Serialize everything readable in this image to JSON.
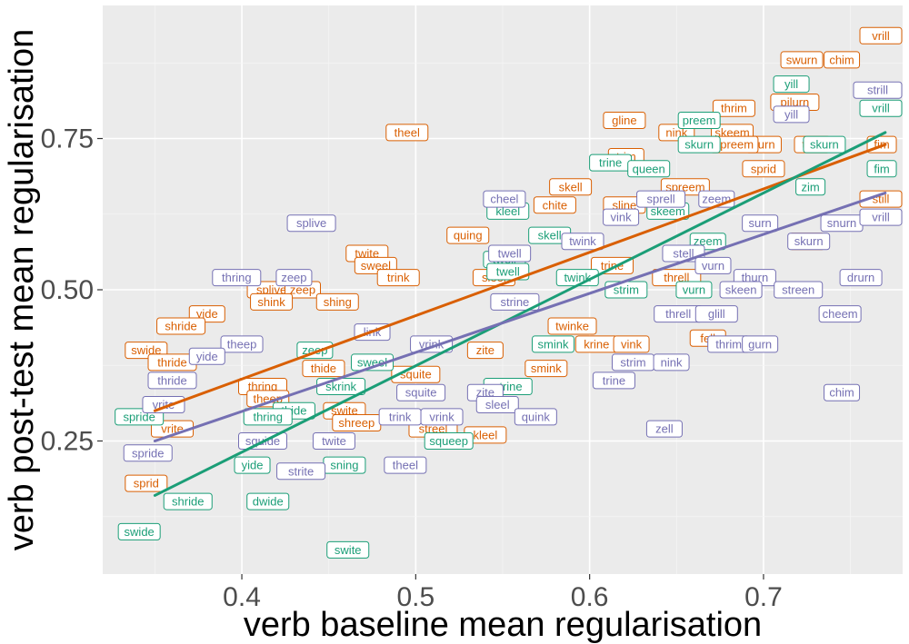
{
  "colors": {
    "panel": "#ebebeb",
    "grid_major": "#ffffff",
    "grid_minor": "#f5f5f5",
    "orange": "#d95f02",
    "green": "#1b9e77",
    "purple": "#7570b3",
    "tick_text": "#4d4d4d"
  },
  "chart_data": {
    "type": "scatter",
    "title": "",
    "xlabel": "verb baseline mean regularisation",
    "ylabel": "verb post-test mean regularisation",
    "xlim": [
      0.32,
      0.78
    ],
    "ylim": [
      0.03,
      0.97
    ],
    "x_ticks": [
      0.4,
      0.5,
      0.6,
      0.7
    ],
    "x_tick_labels": [
      "0.4",
      "0.5",
      "0.6",
      "0.7"
    ],
    "y_ticks": [
      0.25,
      0.5,
      0.75
    ],
    "y_tick_labels": [
      "0.25",
      "0.50",
      "0.75"
    ],
    "grid": true,
    "legend": "none",
    "trend_lines": [
      {
        "color": "orange",
        "x": [
          0.35,
          0.77
        ],
        "y": [
          0.3,
          0.74
        ]
      },
      {
        "color": "green",
        "x": [
          0.35,
          0.77
        ],
        "y": [
          0.16,
          0.76
        ]
      },
      {
        "color": "purple",
        "x": [
          0.35,
          0.77
        ],
        "y": [
          0.25,
          0.66
        ]
      }
    ],
    "series": [
      {
        "color": "orange",
        "points": [
          {
            "label": "vrill",
            "x": 0.768,
            "y": 0.92
          },
          {
            "label": "swurn",
            "x": 0.722,
            "y": 0.88
          },
          {
            "label": "chim",
            "x": 0.745,
            "y": 0.88
          },
          {
            "label": "pilurn",
            "x": 0.718,
            "y": 0.81
          },
          {
            "label": "thrim",
            "x": 0.683,
            "y": 0.8
          },
          {
            "label": "theel",
            "x": 0.495,
            "y": 0.76
          },
          {
            "label": "gline",
            "x": 0.62,
            "y": 0.78
          },
          {
            "label": "nink",
            "x": 0.65,
            "y": 0.76
          },
          {
            "label": "skeem",
            "x": 0.682,
            "y": 0.76
          },
          {
            "label": "surn",
            "x": 0.7,
            "y": 0.74
          },
          {
            "label": "spreem",
            "x": 0.683,
            "y": 0.74
          },
          {
            "label": "turn",
            "x": 0.728,
            "y": 0.74
          },
          {
            "label": "fim",
            "x": 0.768,
            "y": 0.74
          },
          {
            "label": "trim",
            "x": 0.621,
            "y": 0.72
          },
          {
            "label": "sprid",
            "x": 0.7,
            "y": 0.7
          },
          {
            "label": "skell",
            "x": 0.589,
            "y": 0.67
          },
          {
            "label": "spreem",
            "x": 0.655,
            "y": 0.67
          },
          {
            "label": "chite",
            "x": 0.58,
            "y": 0.64
          },
          {
            "label": "sline",
            "x": 0.62,
            "y": 0.64
          },
          {
            "label": "still",
            "x": 0.768,
            "y": 0.65
          },
          {
            "label": "quing",
            "x": 0.53,
            "y": 0.59
          },
          {
            "label": "yill",
            "x": 0.725,
            "y": 0.58
          },
          {
            "label": "twite",
            "x": 0.472,
            "y": 0.56
          },
          {
            "label": "sweel",
            "x": 0.477,
            "y": 0.54
          },
          {
            "label": "trine",
            "x": 0.613,
            "y": 0.54
          },
          {
            "label": "sleel",
            "x": 0.545,
            "y": 0.52
          },
          {
            "label": "splive",
            "x": 0.417,
            "y": 0.5
          },
          {
            "label": "zeep",
            "x": 0.435,
            "y": 0.5
          },
          {
            "label": "trink",
            "x": 0.49,
            "y": 0.52
          },
          {
            "label": "threll",
            "x": 0.65,
            "y": 0.52
          },
          {
            "label": "shink",
            "x": 0.417,
            "y": 0.48
          },
          {
            "label": "shing",
            "x": 0.455,
            "y": 0.48
          },
          {
            "label": "yide",
            "x": 0.38,
            "y": 0.46
          },
          {
            "label": "shride",
            "x": 0.365,
            "y": 0.44
          },
          {
            "label": "twinke",
            "x": 0.59,
            "y": 0.44
          },
          {
            "label": "fell",
            "x": 0.668,
            "y": 0.42
          },
          {
            "label": "swide",
            "x": 0.345,
            "y": 0.4
          },
          {
            "label": "zite",
            "x": 0.54,
            "y": 0.4
          },
          {
            "label": "krine",
            "x": 0.604,
            "y": 0.41
          },
          {
            "label": "vink",
            "x": 0.624,
            "y": 0.41
          },
          {
            "label": "thride",
            "x": 0.36,
            "y": 0.38
          },
          {
            "label": "smink",
            "x": 0.575,
            "y": 0.37
          },
          {
            "label": "thide",
            "x": 0.447,
            "y": 0.37
          },
          {
            "label": "squite",
            "x": 0.5,
            "y": 0.36
          },
          {
            "label": "thring",
            "x": 0.412,
            "y": 0.34
          },
          {
            "label": "theep",
            "x": 0.415,
            "y": 0.32
          },
          {
            "label": "swite",
            "x": 0.459,
            "y": 0.3
          },
          {
            "label": "shreep",
            "x": 0.466,
            "y": 0.28
          },
          {
            "label": "streel",
            "x": 0.51,
            "y": 0.27
          },
          {
            "label": "kleel",
            "x": 0.54,
            "y": 0.26
          },
          {
            "label": "vrite",
            "x": 0.36,
            "y": 0.27
          },
          {
            "label": "sprid",
            "x": 0.345,
            "y": 0.18
          }
        ]
      },
      {
        "color": "green",
        "points": [
          {
            "label": "yill",
            "x": 0.716,
            "y": 0.84
          },
          {
            "label": "vrill",
            "x": 0.768,
            "y": 0.8
          },
          {
            "label": "preem",
            "x": 0.663,
            "y": 0.78
          },
          {
            "label": "skurn",
            "x": 0.663,
            "y": 0.74
          },
          {
            "label": "skurn",
            "x": 0.735,
            "y": 0.74
          },
          {
            "label": "trine",
            "x": 0.612,
            "y": 0.71
          },
          {
            "label": "queen",
            "x": 0.634,
            "y": 0.7
          },
          {
            "label": "fim",
            "x": 0.768,
            "y": 0.7
          },
          {
            "label": "zim",
            "x": 0.727,
            "y": 0.67
          },
          {
            "label": "kleel",
            "x": 0.553,
            "y": 0.63
          },
          {
            "label": "skeem",
            "x": 0.645,
            "y": 0.63
          },
          {
            "label": "skell",
            "x": 0.577,
            "y": 0.59
          },
          {
            "label": "zeem",
            "x": 0.668,
            "y": 0.58
          },
          {
            "label": "twell",
            "x": 0.551,
            "y": 0.55
          },
          {
            "label": "twell",
            "x": 0.553,
            "y": 0.53
          },
          {
            "label": "twink",
            "x": 0.593,
            "y": 0.52
          },
          {
            "label": "strim",
            "x": 0.621,
            "y": 0.5
          },
          {
            "label": "vurn",
            "x": 0.66,
            "y": 0.5
          },
          {
            "label": "zeep",
            "x": 0.442,
            "y": 0.4
          },
          {
            "label": "smink",
            "x": 0.579,
            "y": 0.41
          },
          {
            "label": "sweel",
            "x": 0.475,
            "y": 0.38
          },
          {
            "label": "skrink",
            "x": 0.457,
            "y": 0.34
          },
          {
            "label": "strine",
            "x": 0.553,
            "y": 0.34
          },
          {
            "label": "thide",
            "x": 0.43,
            "y": 0.3
          },
          {
            "label": "thring",
            "x": 0.415,
            "y": 0.29
          },
          {
            "label": "squeep",
            "x": 0.519,
            "y": 0.25
          },
          {
            "label": "spride",
            "x": 0.341,
            "y": 0.29
          },
          {
            "label": "yide",
            "x": 0.406,
            "y": 0.21
          },
          {
            "label": "sning",
            "x": 0.459,
            "y": 0.21
          },
          {
            "label": "shride",
            "x": 0.369,
            "y": 0.15
          },
          {
            "label": "dwide",
            "x": 0.415,
            "y": 0.15
          },
          {
            "label": "swide",
            "x": 0.341,
            "y": 0.1
          },
          {
            "label": "swite",
            "x": 0.461,
            "y": 0.07
          }
        ]
      },
      {
        "color": "purple",
        "points": [
          {
            "label": "strill",
            "x": 0.768,
            "y": 0.83
          },
          {
            "label": "yill",
            "x": 0.716,
            "y": 0.79
          },
          {
            "label": "cheel",
            "x": 0.551,
            "y": 0.65
          },
          {
            "label": "sprell",
            "x": 0.641,
            "y": 0.65
          },
          {
            "label": "zeem",
            "x": 0.673,
            "y": 0.65
          },
          {
            "label": "vink",
            "x": 0.618,
            "y": 0.62
          },
          {
            "label": "surn",
            "x": 0.698,
            "y": 0.61
          },
          {
            "label": "snurn",
            "x": 0.745,
            "y": 0.61
          },
          {
            "label": "vrill",
            "x": 0.768,
            "y": 0.62
          },
          {
            "label": "splive",
            "x": 0.44,
            "y": 0.61
          },
          {
            "label": "skurn",
            "x": 0.726,
            "y": 0.58
          },
          {
            "label": "twell",
            "x": 0.554,
            "y": 0.56
          },
          {
            "label": "twink",
            "x": 0.596,
            "y": 0.58
          },
          {
            "label": "stell",
            "x": 0.654,
            "y": 0.56
          },
          {
            "label": "vurn",
            "x": 0.671,
            "y": 0.54
          },
          {
            "label": "thurn",
            "x": 0.695,
            "y": 0.52
          },
          {
            "label": "drurn",
            "x": 0.756,
            "y": 0.52
          },
          {
            "label": "thring",
            "x": 0.397,
            "y": 0.52
          },
          {
            "label": "zeep",
            "x": 0.43,
            "y": 0.52
          },
          {
            "label": "streen",
            "x": 0.72,
            "y": 0.5
          },
          {
            "label": "skeen",
            "x": 0.687,
            "y": 0.5
          },
          {
            "label": "strine",
            "x": 0.557,
            "y": 0.48
          },
          {
            "label": "cheem",
            "x": 0.744,
            "y": 0.46
          },
          {
            "label": "threll",
            "x": 0.651,
            "y": 0.46
          },
          {
            "label": "glill",
            "x": 0.673,
            "y": 0.46
          },
          {
            "label": "link",
            "x": 0.475,
            "y": 0.43
          },
          {
            "label": "theep",
            "x": 0.4,
            "y": 0.41
          },
          {
            "label": "vrink",
            "x": 0.509,
            "y": 0.41
          },
          {
            "label": "yide",
            "x": 0.38,
            "y": 0.39
          },
          {
            "label": "thride",
            "x": 0.36,
            "y": 0.35
          },
          {
            "label": "thrim",
            "x": 0.68,
            "y": 0.41
          },
          {
            "label": "gurn",
            "x": 0.698,
            "y": 0.41
          },
          {
            "label": "strim",
            "x": 0.625,
            "y": 0.38
          },
          {
            "label": "nink",
            "x": 0.647,
            "y": 0.38
          },
          {
            "label": "trine",
            "x": 0.614,
            "y": 0.35
          },
          {
            "label": "chim",
            "x": 0.745,
            "y": 0.33
          },
          {
            "label": "zite",
            "x": 0.54,
            "y": 0.33
          },
          {
            "label": "squite",
            "x": 0.503,
            "y": 0.33
          },
          {
            "label": "sleel",
            "x": 0.547,
            "y": 0.31
          },
          {
            "label": "trink",
            "x": 0.491,
            "y": 0.29
          },
          {
            "label": "vrink",
            "x": 0.515,
            "y": 0.29
          },
          {
            "label": "quink",
            "x": 0.569,
            "y": 0.29
          },
          {
            "label": "vrite",
            "x": 0.355,
            "y": 0.31
          },
          {
            "label": "zell",
            "x": 0.643,
            "y": 0.27
          },
          {
            "label": "squide",
            "x": 0.412,
            "y": 0.25
          },
          {
            "label": "twite",
            "x": 0.453,
            "y": 0.25
          },
          {
            "label": "spride",
            "x": 0.346,
            "y": 0.23
          },
          {
            "label": "theel",
            "x": 0.494,
            "y": 0.21
          },
          {
            "label": "strite",
            "x": 0.434,
            "y": 0.2
          }
        ]
      }
    ]
  }
}
